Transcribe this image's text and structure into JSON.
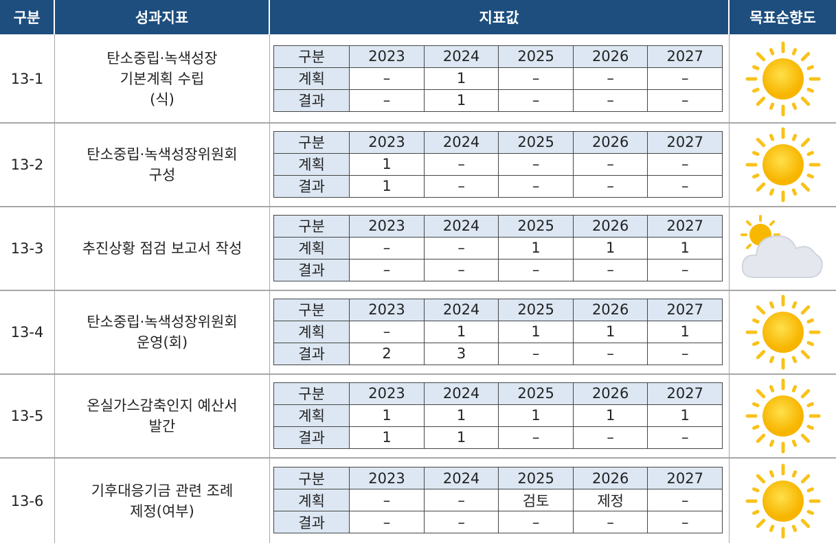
{
  "header": [
    "구분",
    "성과지표",
    "지표값",
    "목표순향도"
  ],
  "rows": [
    {
      "id": "13-1",
      "indicator": [
        "탄소중립·녹색성장",
        "기본계획 수립",
        "(식)"
      ],
      "subtable": [
        [
          "구분",
          "2023",
          "2024",
          "2025",
          "2026",
          "2027"
        ],
        [
          "계획",
          "–",
          "1",
          "–",
          "–",
          "–"
        ],
        [
          "결과",
          "–",
          "1",
          "–",
          "–",
          "–"
        ]
      ]
    },
    {
      "id": "13-2",
      "indicator": [
        "탄소중립·녹색성장위원회",
        "구성"
      ],
      "subtable": [
        [
          "구분",
          "2023",
          "2024",
          "2025",
          "2026",
          "2027"
        ],
        [
          "계획",
          "1",
          "–",
          "–",
          "–",
          "–"
        ],
        [
          "결과",
          "1",
          "–",
          "–",
          "–",
          "–"
        ]
      ]
    },
    {
      "id": "13-3",
      "indicator": [
        "추진상황 점검 보고서 작성"
      ],
      "subtable": [
        [
          "구분",
          "2023",
          "2024",
          "2025",
          "2026",
          "2027"
        ],
        [
          "계획",
          "–",
          "–",
          "1",
          "1",
          "1"
        ],
        [
          "결과",
          "–",
          "–",
          "–",
          "–",
          "–"
        ]
      ]
    },
    {
      "id": "13-4",
      "indicator": [
        "탄소중립·녹색성장위원회",
        "운영(회)"
      ],
      "subtable": [
        [
          "구분",
          "2023",
          "2024",
          "2025",
          "2026",
          "2027"
        ],
        [
          "계획",
          "–",
          "1",
          "1",
          "1",
          "1"
        ],
        [
          "결과",
          "2",
          "3",
          "–",
          "–",
          "–"
        ]
      ]
    },
    {
      "id": "13-5",
      "indicator": [
        "온실가스감축인지 예산서",
        "발간"
      ],
      "subtable": [
        [
          "구분",
          "2023",
          "2024",
          "2025",
          "2026",
          "2027"
        ],
        [
          "계획",
          "1",
          "1",
          "1",
          "1",
          "1"
        ],
        [
          "결과",
          "1",
          "1",
          "–",
          "–",
          "–"
        ]
      ]
    },
    {
      "id": "13-6",
      "indicator": [
        "기후대응기금 관련 조례",
        "제정(여부)"
      ],
      "subtable": [
        [
          "구분",
          "2023",
          "2024",
          "2025",
          "2026",
          "2027"
        ],
        [
          "계획",
          "–",
          "–",
          "검토",
          "제정",
          "–"
        ],
        [
          "결과",
          "–",
          "–",
          "–",
          "–",
          "–"
        ]
      ]
    }
  ]
}
